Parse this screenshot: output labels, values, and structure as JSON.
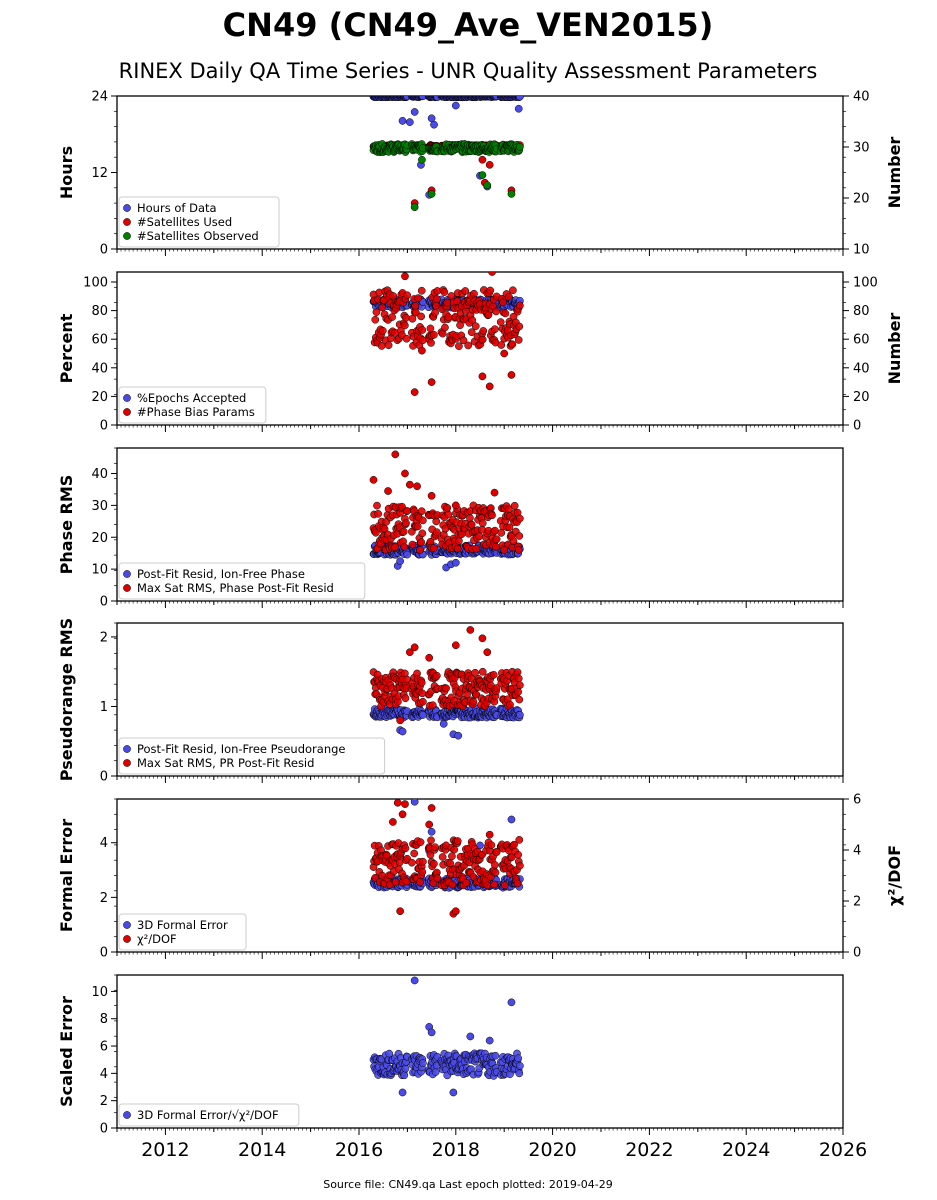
{
  "title": "CN49 (CN49_Ave_VEN2015)",
  "subtitle": "RINEX Daily QA Time Series - UNR Quality Assessment Parameters",
  "footer": "Source file: CN49.qa Last epoch plotted: 2019-04-29",
  "colors": {
    "blue": "#4a4ae8",
    "red": "#e00000",
    "green": "#008000"
  },
  "chart_data": [
    {
      "type": "scatter",
      "ylabel": "Hours",
      "ylim": [
        0,
        24
      ],
      "yticks": [
        "0",
        "12",
        "24"
      ],
      "y2label": "Number",
      "y2lim": [
        10,
        40
      ],
      "y2ticks": [
        "10",
        "20",
        "30",
        "40"
      ],
      "xlim": [
        2011.0,
        2026.0
      ],
      "legend_position": "lower-left",
      "series": [
        {
          "name": "Hours of Data",
          "color": "#4a4ae8",
          "axis": "left",
          "x_range": [
            2016.3,
            2019.33
          ],
          "band": [
            23.8,
            24.0
          ],
          "outliers": [
            [
              2016.9,
              20.1
            ],
            [
              2017.05,
              19.9
            ],
            [
              2017.15,
              21.5
            ],
            [
              2017.28,
              13.2
            ],
            [
              2017.5,
              20.5
            ],
            [
              2017.55,
              19.5
            ],
            [
              2017.45,
              8.5
            ],
            [
              2018.0,
              22.5
            ],
            [
              2018.5,
              11.5
            ],
            [
              2018.65,
              9.8
            ],
            [
              2019.3,
              22.0
            ]
          ]
        },
        {
          "name": "#Satellites Used",
          "color": "#e00000",
          "axis": "right",
          "x_range": [
            2016.3,
            2019.33
          ],
          "band": [
            30.0,
            30.4
          ],
          "outliers": [
            [
              2017.15,
              19.0
            ],
            [
              2017.5,
              21.5
            ],
            [
              2017.3,
              29.5
            ],
            [
              2018.55,
              27.5
            ],
            [
              2018.7,
              26.5
            ],
            [
              2019.15,
              21.5
            ],
            [
              2018.6,
              23.0
            ]
          ]
        },
        {
          "name": "#Satellites Observed",
          "color": "#008000",
          "axis": "right",
          "x_range": [
            2016.3,
            2019.33
          ],
          "band": [
            29.0,
            30.6
          ],
          "outliers": [
            [
              2017.15,
              18.2
            ],
            [
              2017.5,
              20.8
            ],
            [
              2017.3,
              27.5
            ],
            [
              2018.55,
              24.5
            ],
            [
              2018.65,
              22.5
            ],
            [
              2019.15,
              20.8
            ]
          ]
        }
      ]
    },
    {
      "type": "scatter",
      "ylabel": "Percent",
      "ylim": [
        0,
        107
      ],
      "yticks": [
        "0",
        "20",
        "40",
        "60",
        "80",
        "100"
      ],
      "y2label": "Number",
      "y2lim": [
        0,
        107
      ],
      "y2ticks": [
        "0",
        "20",
        "40",
        "60",
        "80",
        "100"
      ],
      "xlim": [
        2011.0,
        2026.0
      ],
      "legend_position": "lower-left",
      "series": [
        {
          "name": "%Epochs Accepted",
          "color": "#4a4ae8",
          "axis": "left",
          "x_range": [
            2016.3,
            2019.33
          ],
          "band": [
            82.0,
            88.0
          ],
          "outliers": []
        },
        {
          "name": "#Phase Bias Params",
          "color": "#e00000",
          "axis": "right",
          "x_range": [
            2016.3,
            2019.33
          ],
          "band": [
            55.0,
            95.0
          ],
          "outliers": [
            [
              2017.15,
              23.0
            ],
            [
              2017.5,
              30.0
            ],
            [
              2018.55,
              34.0
            ],
            [
              2018.7,
              27.0
            ],
            [
              2019.15,
              35.0
            ],
            [
              2016.95,
              104.0
            ],
            [
              2018.75,
              107.0
            ],
            [
              2017.3,
              52.0
            ],
            [
              2019.0,
              50.0
            ]
          ]
        }
      ]
    },
    {
      "type": "scatter",
      "ylabel": "Phase RMS",
      "ylim": [
        0,
        48
      ],
      "yticks": [
        "0",
        "10",
        "20",
        "30",
        "40"
      ],
      "xlim": [
        2011.0,
        2026.0
      ],
      "legend_position": "lower-left",
      "series": [
        {
          "name": "Post-Fit Resid, Ion-Free Phase",
          "color": "#4a4ae8",
          "axis": "left",
          "x_range": [
            2016.3,
            2019.33
          ],
          "band": [
            14.5,
            17.5
          ],
          "outliers": [
            [
              2016.8,
              11.0
            ],
            [
              2016.85,
              12.5
            ],
            [
              2017.8,
              10.5
            ],
            [
              2017.9,
              11.5
            ],
            [
              2018.0,
              12.0
            ]
          ]
        },
        {
          "name": "Max Sat RMS, Phase Post-Fit Resid",
          "color": "#e00000",
          "axis": "left",
          "x_range": [
            2016.3,
            2019.33
          ],
          "band": [
            16.0,
            30.0
          ],
          "outliers": [
            [
              2016.75,
              46.0
            ],
            [
              2016.95,
              40.0
            ],
            [
              2016.3,
              38.0
            ],
            [
              2016.6,
              34.5
            ],
            [
              2017.05,
              36.5
            ],
            [
              2017.2,
              36.0
            ],
            [
              2017.5,
              33.0
            ],
            [
              2018.8,
              34.0
            ],
            [
              2018.0,
              30.0
            ]
          ]
        }
      ]
    },
    {
      "type": "scatter",
      "ylabel": "Pseudorange RMS",
      "ylim": [
        0,
        2.2
      ],
      "yticks": [
        "0",
        "1",
        "2"
      ],
      "xlim": [
        2011.0,
        2026.0
      ],
      "legend_position": "lower-left",
      "series": [
        {
          "name": "Post-Fit Resid, Ion-Free Pseudorange",
          "color": "#4a4ae8",
          "axis": "left",
          "x_range": [
            2016.3,
            2019.33
          ],
          "band": [
            0.84,
            0.97
          ],
          "outliers": [
            [
              2016.85,
              0.66
            ],
            [
              2016.9,
              0.64
            ],
            [
              2017.95,
              0.6
            ],
            [
              2018.05,
              0.58
            ],
            [
              2017.75,
              0.75
            ]
          ]
        },
        {
          "name": "Max Sat RMS, PR Post-Fit Resid",
          "color": "#e00000",
          "axis": "left",
          "x_range": [
            2016.3,
            2019.33
          ],
          "band": [
            1.0,
            1.5
          ],
          "outliers": [
            [
              2018.3,
              2.1
            ],
            [
              2018.55,
              1.98
            ],
            [
              2018.65,
              1.78
            ],
            [
              2017.15,
              1.85
            ],
            [
              2017.05,
              1.78
            ],
            [
              2018.0,
              1.88
            ],
            [
              2017.45,
              1.7
            ],
            [
              2016.85,
              0.8
            ]
          ]
        }
      ]
    },
    {
      "type": "scatter",
      "ylabel": "Formal Error",
      "ylim": [
        0,
        5.6
      ],
      "yticks": [
        "0",
        "2",
        "4"
      ],
      "y2label": "χ²/DOF",
      "y2lim": [
        0,
        6
      ],
      "y2ticks": [
        "0",
        "2",
        "4",
        "6"
      ],
      "xlim": [
        2011.0,
        2026.0
      ],
      "legend_position": "lower-left",
      "series": [
        {
          "name": "3D Formal Error",
          "color": "#4a4ae8",
          "axis": "left",
          "x_range": [
            2016.3,
            2019.33
          ],
          "band": [
            2.35,
            2.7
          ],
          "outliers": [
            [
              2017.15,
              5.5
            ],
            [
              2019.15,
              4.85
            ],
            [
              2017.5,
              4.4
            ],
            [
              2018.5,
              3.9
            ],
            [
              2017.45,
              3.7
            ]
          ]
        },
        {
          "name": "χ²/DOF",
          "color": "#e00000",
          "axis": "right",
          "x_range": [
            2016.3,
            2019.33
          ],
          "band": [
            2.6,
            4.4
          ],
          "outliers": [
            [
              2016.8,
              5.85
            ],
            [
              2016.9,
              5.4
            ],
            [
              2016.95,
              5.8
            ],
            [
              2016.7,
              5.1
            ],
            [
              2017.5,
              5.65
            ],
            [
              2017.45,
              5.0
            ],
            [
              2016.85,
              1.6
            ],
            [
              2017.95,
              1.5
            ],
            [
              2018.0,
              1.6
            ],
            [
              2018.7,
              4.6
            ]
          ]
        }
      ]
    },
    {
      "type": "scatter",
      "ylabel": "Scaled Error",
      "ylim": [
        0,
        11.2
      ],
      "yticks": [
        "0",
        "2",
        "4",
        "6",
        "8",
        "10"
      ],
      "xlim": [
        2011.0,
        2026.0
      ],
      "legend_position": "lower-left",
      "series": [
        {
          "name": "3D Formal Error/√χ²/DOF",
          "color": "#4a4ae8",
          "axis": "left",
          "x_range": [
            2016.3,
            2019.33
          ],
          "band": [
            3.8,
            5.5
          ],
          "outliers": [
            [
              2017.15,
              10.8
            ],
            [
              2019.15,
              9.2
            ],
            [
              2017.45,
              7.4
            ],
            [
              2018.3,
              6.7
            ],
            [
              2018.7,
              6.4
            ],
            [
              2016.9,
              2.6
            ],
            [
              2017.95,
              2.6
            ],
            [
              2017.5,
              7.0
            ]
          ]
        }
      ]
    }
  ],
  "xticks": [
    "2012",
    "2014",
    "2016",
    "2018",
    "2020",
    "2022",
    "2024",
    "2026"
  ]
}
